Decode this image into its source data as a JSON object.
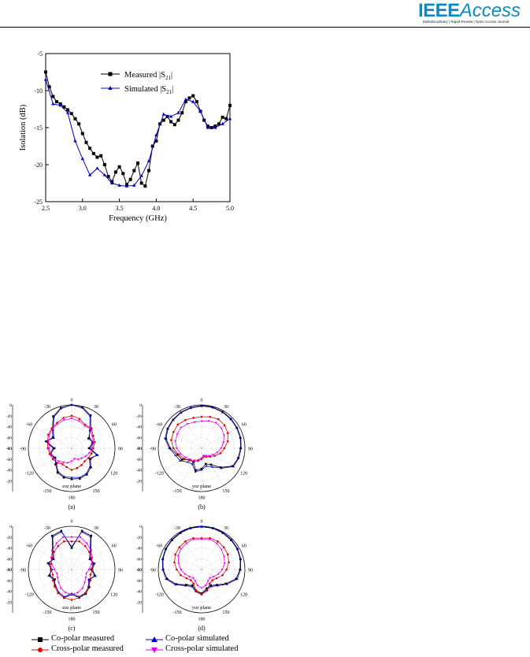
{
  "header": {
    "logo_ieee": "IEEE",
    "logo_access": "Access",
    "logo_tagline": "Multidisciplinary | Rapid Review | Open Access Journal"
  },
  "chart_data": [
    {
      "type": "line",
      "xlabel": "Frequency (GHz)",
      "ylabel": "Isolation (dB)",
      "xlim": [
        2.5,
        5.0
      ],
      "ylim": [
        -25,
        -5
      ],
      "xticks": [
        "2.5",
        "3.0",
        "3.5",
        "4.0",
        "4.5",
        "5.0"
      ],
      "yticks": [
        "-5",
        "-10",
        "-15",
        "-20",
        "-25"
      ],
      "legend_position": "top-center",
      "series": [
        {
          "name": "Measured |S21|",
          "color": "#000000",
          "marker": "square",
          "x": [
            2.5,
            2.55,
            2.6,
            2.65,
            2.7,
            2.75,
            2.8,
            2.85,
            2.9,
            2.95,
            3.0,
            3.05,
            3.1,
            3.15,
            3.2,
            3.25,
            3.3,
            3.35,
            3.4,
            3.45,
            3.5,
            3.55,
            3.6,
            3.65,
            3.7,
            3.75,
            3.8,
            3.85,
            3.9,
            3.95,
            4.0,
            4.05,
            4.1,
            4.15,
            4.2,
            4.25,
            4.3,
            4.35,
            4.4,
            4.45,
            4.5,
            4.55,
            4.6,
            4.65,
            4.7,
            4.75,
            4.8,
            4.85,
            4.9,
            4.95,
            5.0
          ],
          "y": [
            -7.5,
            -9.5,
            -10.8,
            -11.5,
            -11.8,
            -12.2,
            -12.6,
            -13.1,
            -13.8,
            -14.5,
            -15.8,
            -17.0,
            -17.8,
            -18.5,
            -19.0,
            -18.8,
            -20.0,
            -21.6,
            -22.3,
            -21.0,
            -20.3,
            -21.2,
            -22.7,
            -22.0,
            -20.8,
            -19.8,
            -22.5,
            -22.9,
            -20.8,
            -17.5,
            -16.8,
            -14.5,
            -14.0,
            -13.5,
            -14.2,
            -14.6,
            -14.0,
            -13.0,
            -11.5,
            -11.0,
            -10.7,
            -11.5,
            -12.8,
            -14.0,
            -14.8,
            -15.0,
            -14.8,
            -14.5,
            -13.6,
            -13.8,
            -12.0
          ]
        },
        {
          "name": "Simulated |S21|",
          "color": "#0000cc",
          "marker": "triangle",
          "x": [
            2.5,
            2.6,
            2.7,
            2.8,
            2.9,
            3.0,
            3.1,
            3.2,
            3.3,
            3.4,
            3.5,
            3.6,
            3.7,
            3.8,
            3.9,
            4.0,
            4.1,
            4.2,
            4.3,
            4.4,
            4.5,
            4.6,
            4.7,
            4.8,
            4.9,
            5.0
          ],
          "y": [
            -8.5,
            -11.8,
            -12.0,
            -13.0,
            -16.8,
            -19.2,
            -21.4,
            -20.5,
            -21.4,
            -22.5,
            -22.8,
            -22.9,
            -22.8,
            -21.5,
            -19.5,
            -16.0,
            -13.2,
            -13.5,
            -13.0,
            -11.2,
            -11.5,
            -12.8,
            -15.0,
            -15.0,
            -14.5,
            -13.8
          ]
        }
      ]
    },
    {
      "type": "polar",
      "title_label": "xoz plane",
      "panel_letter": "(a)",
      "rlabels": [
        "0",
        "-20",
        "-40",
        "-60",
        "-80"
      ],
      "angle_labels": [
        "0",
        "30",
        "60",
        "90",
        "120",
        "150",
        "180",
        "-150",
        "-120",
        "-90",
        "-60",
        "-30"
      ],
      "series": [
        {
          "name": "Co-polar measured",
          "color": "#000000",
          "marker": "square",
          "r": [
            0,
            -2,
            -10,
            -30,
            -44,
            -40,
            -48,
            -32,
            -40,
            -30,
            -24,
            -22,
            -23,
            -24,
            -28,
            -38,
            -45,
            -40,
            -48,
            -32,
            -40,
            -30,
            -12,
            -3
          ]
        },
        {
          "name": "Co-polar simulated",
          "color": "#0000cc",
          "marker": "triangle",
          "r": [
            0,
            -3,
            -12,
            -33,
            -42,
            -38,
            -46,
            -30,
            -42,
            -32,
            -26,
            -24,
            -26,
            -26,
            -30,
            -40,
            -44,
            -38,
            -46,
            -30,
            -42,
            -32,
            -14,
            -4
          ]
        },
        {
          "name": "Cross-polar measured",
          "color": "#e00000",
          "marker": "circle",
          "r": [
            -20,
            -24,
            -30,
            -28,
            -34,
            -36,
            -40,
            -42,
            -44,
            -46,
            -44,
            -42,
            -40,
            -44,
            -46,
            -42,
            -40,
            -38,
            -36,
            -34,
            -30,
            -28,
            -26,
            -22
          ]
        },
        {
          "name": "Cross-polar simulated",
          "color": "#ee00ee",
          "marker": "inverted-triangle",
          "r": [
            -25,
            -28,
            -32,
            -30,
            -36,
            -38,
            -42,
            -46,
            -50,
            -54,
            -56,
            -60,
            -56,
            -52,
            -50,
            -46,
            -42,
            -40,
            -38,
            -36,
            -32,
            -30,
            -28,
            -26
          ]
        }
      ]
    },
    {
      "type": "polar",
      "title_label": "yoz plane",
      "panel_letter": "(b)",
      "rlabels": [
        "0",
        "-20",
        "-40",
        "-60",
        "-80"
      ],
      "angle_labels": [
        "0",
        "30",
        "60",
        "90",
        "120",
        "150",
        "180",
        "-150",
        "-120",
        "-90",
        "-60",
        "-30"
      ],
      "series": [
        {
          "name": "Co-polar measured",
          "color": "#000000",
          "marker": "square",
          "r": [
            -2,
            -2,
            -3,
            -4,
            -5,
            -6,
            -8,
            -10,
            -14,
            -30,
            -45,
            -50,
            -42,
            -38,
            -50,
            -50,
            -38,
            -34,
            -22,
            -12,
            -8,
            -6,
            -4,
            -3
          ]
        },
        {
          "name": "Co-polar simulated",
          "color": "#0000cc",
          "marker": "triangle",
          "r": [
            -1,
            -1,
            -2,
            -3,
            -4,
            -5,
            -7,
            -9,
            -12,
            -28,
            -40,
            -46,
            -40,
            -35,
            -46,
            -44,
            -34,
            -30,
            -20,
            -10,
            -7,
            -5,
            -3,
            -2
          ]
        },
        {
          "name": "Cross-polar measured",
          "color": "#e00000",
          "marker": "circle",
          "r": [
            -22,
            -20,
            -18,
            -20,
            -24,
            -30,
            -38,
            -44,
            -52,
            -58,
            -62,
            -64,
            -60,
            -56,
            -52,
            -48,
            -42,
            -36,
            -28,
            -22,
            -20,
            -18,
            -20,
            -22
          ]
        },
        {
          "name": "Cross-polar simulated",
          "color": "#ee00ee",
          "marker": "inverted-triangle",
          "r": [
            -30,
            -28,
            -26,
            -28,
            -32,
            -38,
            -44,
            -50,
            -56,
            -60,
            -64,
            -66,
            -62,
            -58,
            -54,
            -50,
            -46,
            -40,
            -34,
            -30,
            -28,
            -26,
            -28,
            -30
          ]
        }
      ]
    },
    {
      "type": "polar",
      "title_label": "xoz plane",
      "panel_letter": "(c)",
      "rlabels": [
        "0",
        "-20",
        "-40",
        "-60",
        "-80"
      ],
      "angle_labels": [
        "0",
        "30",
        "60",
        "90",
        "120",
        "150",
        "180",
        "-150",
        "-120",
        "-90",
        "-60",
        "-30"
      ],
      "series": [
        {
          "name": "Co-polar measured",
          "color": "#000000",
          "marker": "square",
          "r": [
            -40,
            -6,
            -8,
            -30,
            -40,
            -38,
            -44,
            -36,
            -42,
            -34,
            -28,
            -26,
            -34,
            -26,
            -30,
            -36,
            -44,
            -38,
            -42,
            -36,
            -40,
            -30,
            -8,
            -6
          ]
        },
        {
          "name": "Co-polar simulated",
          "color": "#0000cc",
          "marker": "triangle",
          "r": [
            -38,
            -8,
            -10,
            -32,
            -42,
            -36,
            -42,
            -34,
            -44,
            -36,
            -30,
            -28,
            -36,
            -28,
            -32,
            -38,
            -42,
            -36,
            -44,
            -34,
            -42,
            -32,
            -10,
            -8
          ]
        },
        {
          "name": "Cross-polar measured",
          "color": "#e00000",
          "marker": "circle",
          "r": [
            -28,
            -26,
            -30,
            -34,
            -38,
            -40,
            -42,
            -44,
            -40,
            -36,
            -30,
            -26,
            -24,
            -26,
            -30,
            -36,
            -40,
            -44,
            -42,
            -40,
            -38,
            -34,
            -30,
            -26
          ]
        },
        {
          "name": "Cross-polar simulated",
          "color": "#ee00ee",
          "marker": "inverted-triangle",
          "r": [
            -20,
            -18,
            -24,
            -30,
            -36,
            -42,
            -48,
            -52,
            -50,
            -46,
            -40,
            -36,
            -34,
            -36,
            -40,
            -46,
            -50,
            -52,
            -48,
            -42,
            -36,
            -30,
            -24,
            -18
          ]
        }
      ]
    },
    {
      "type": "polar",
      "title_label": "yoz plane",
      "panel_letter": "(d)",
      "rlabels": [
        "0",
        "-20",
        "-40",
        "-60",
        "-80"
      ],
      "angle_labels": [
        "0",
        "30",
        "60",
        "90",
        "120",
        "150",
        "180",
        "-150",
        "-120",
        "-90",
        "-60",
        "-30"
      ],
      "series": [
        {
          "name": "Co-polar measured",
          "color": "#000000",
          "marker": "square",
          "r": [
            -1,
            -1,
            -2,
            -3,
            -4,
            -6,
            -9,
            -14,
            -28,
            -40,
            -46,
            -44,
            -36,
            -40,
            -46,
            -40,
            -26,
            -14,
            -9,
            -6,
            -4,
            -3,
            -2,
            -1
          ]
        },
        {
          "name": "Co-polar simulated",
          "color": "#0000cc",
          "marker": "triangle",
          "r": [
            0,
            0,
            -1,
            -2,
            -3,
            -5,
            -8,
            -12,
            -26,
            -38,
            -44,
            -42,
            -34,
            -38,
            -44,
            -38,
            -24,
            -12,
            -8,
            -5,
            -3,
            -2,
            -1,
            0
          ]
        },
        {
          "name": "Cross-polar measured",
          "color": "#e00000",
          "marker": "circle",
          "r": [
            -22,
            -20,
            -20,
            -22,
            -24,
            -28,
            -34,
            -40,
            -48,
            -52,
            -50,
            -40,
            -34,
            -40,
            -50,
            -52,
            -48,
            -40,
            -34,
            -28,
            -24,
            -22,
            -20,
            -20
          ]
        },
        {
          "name": "Cross-polar simulated",
          "color": "#ee00ee",
          "marker": "inverted-triangle",
          "r": [
            -24,
            -22,
            -24,
            -28,
            -32,
            -36,
            -42,
            -48,
            -54,
            -58,
            -56,
            -50,
            -46,
            -50,
            -56,
            -58,
            -54,
            -48,
            -42,
            -36,
            -30,
            -26,
            -24,
            -22
          ]
        }
      ]
    }
  ],
  "polar_legend": [
    {
      "label": "Co-polar measured",
      "color": "#000000",
      "marker": "square"
    },
    {
      "label": "Co-polar simulated",
      "color": "#0000cc",
      "marker": "triangle"
    },
    {
      "label": "Cross-polar measured",
      "color": "#e00000",
      "marker": "circle"
    },
    {
      "label": "Cross-polar simulated",
      "color": "#ee00ee",
      "marker": "inverted-triangle"
    }
  ]
}
